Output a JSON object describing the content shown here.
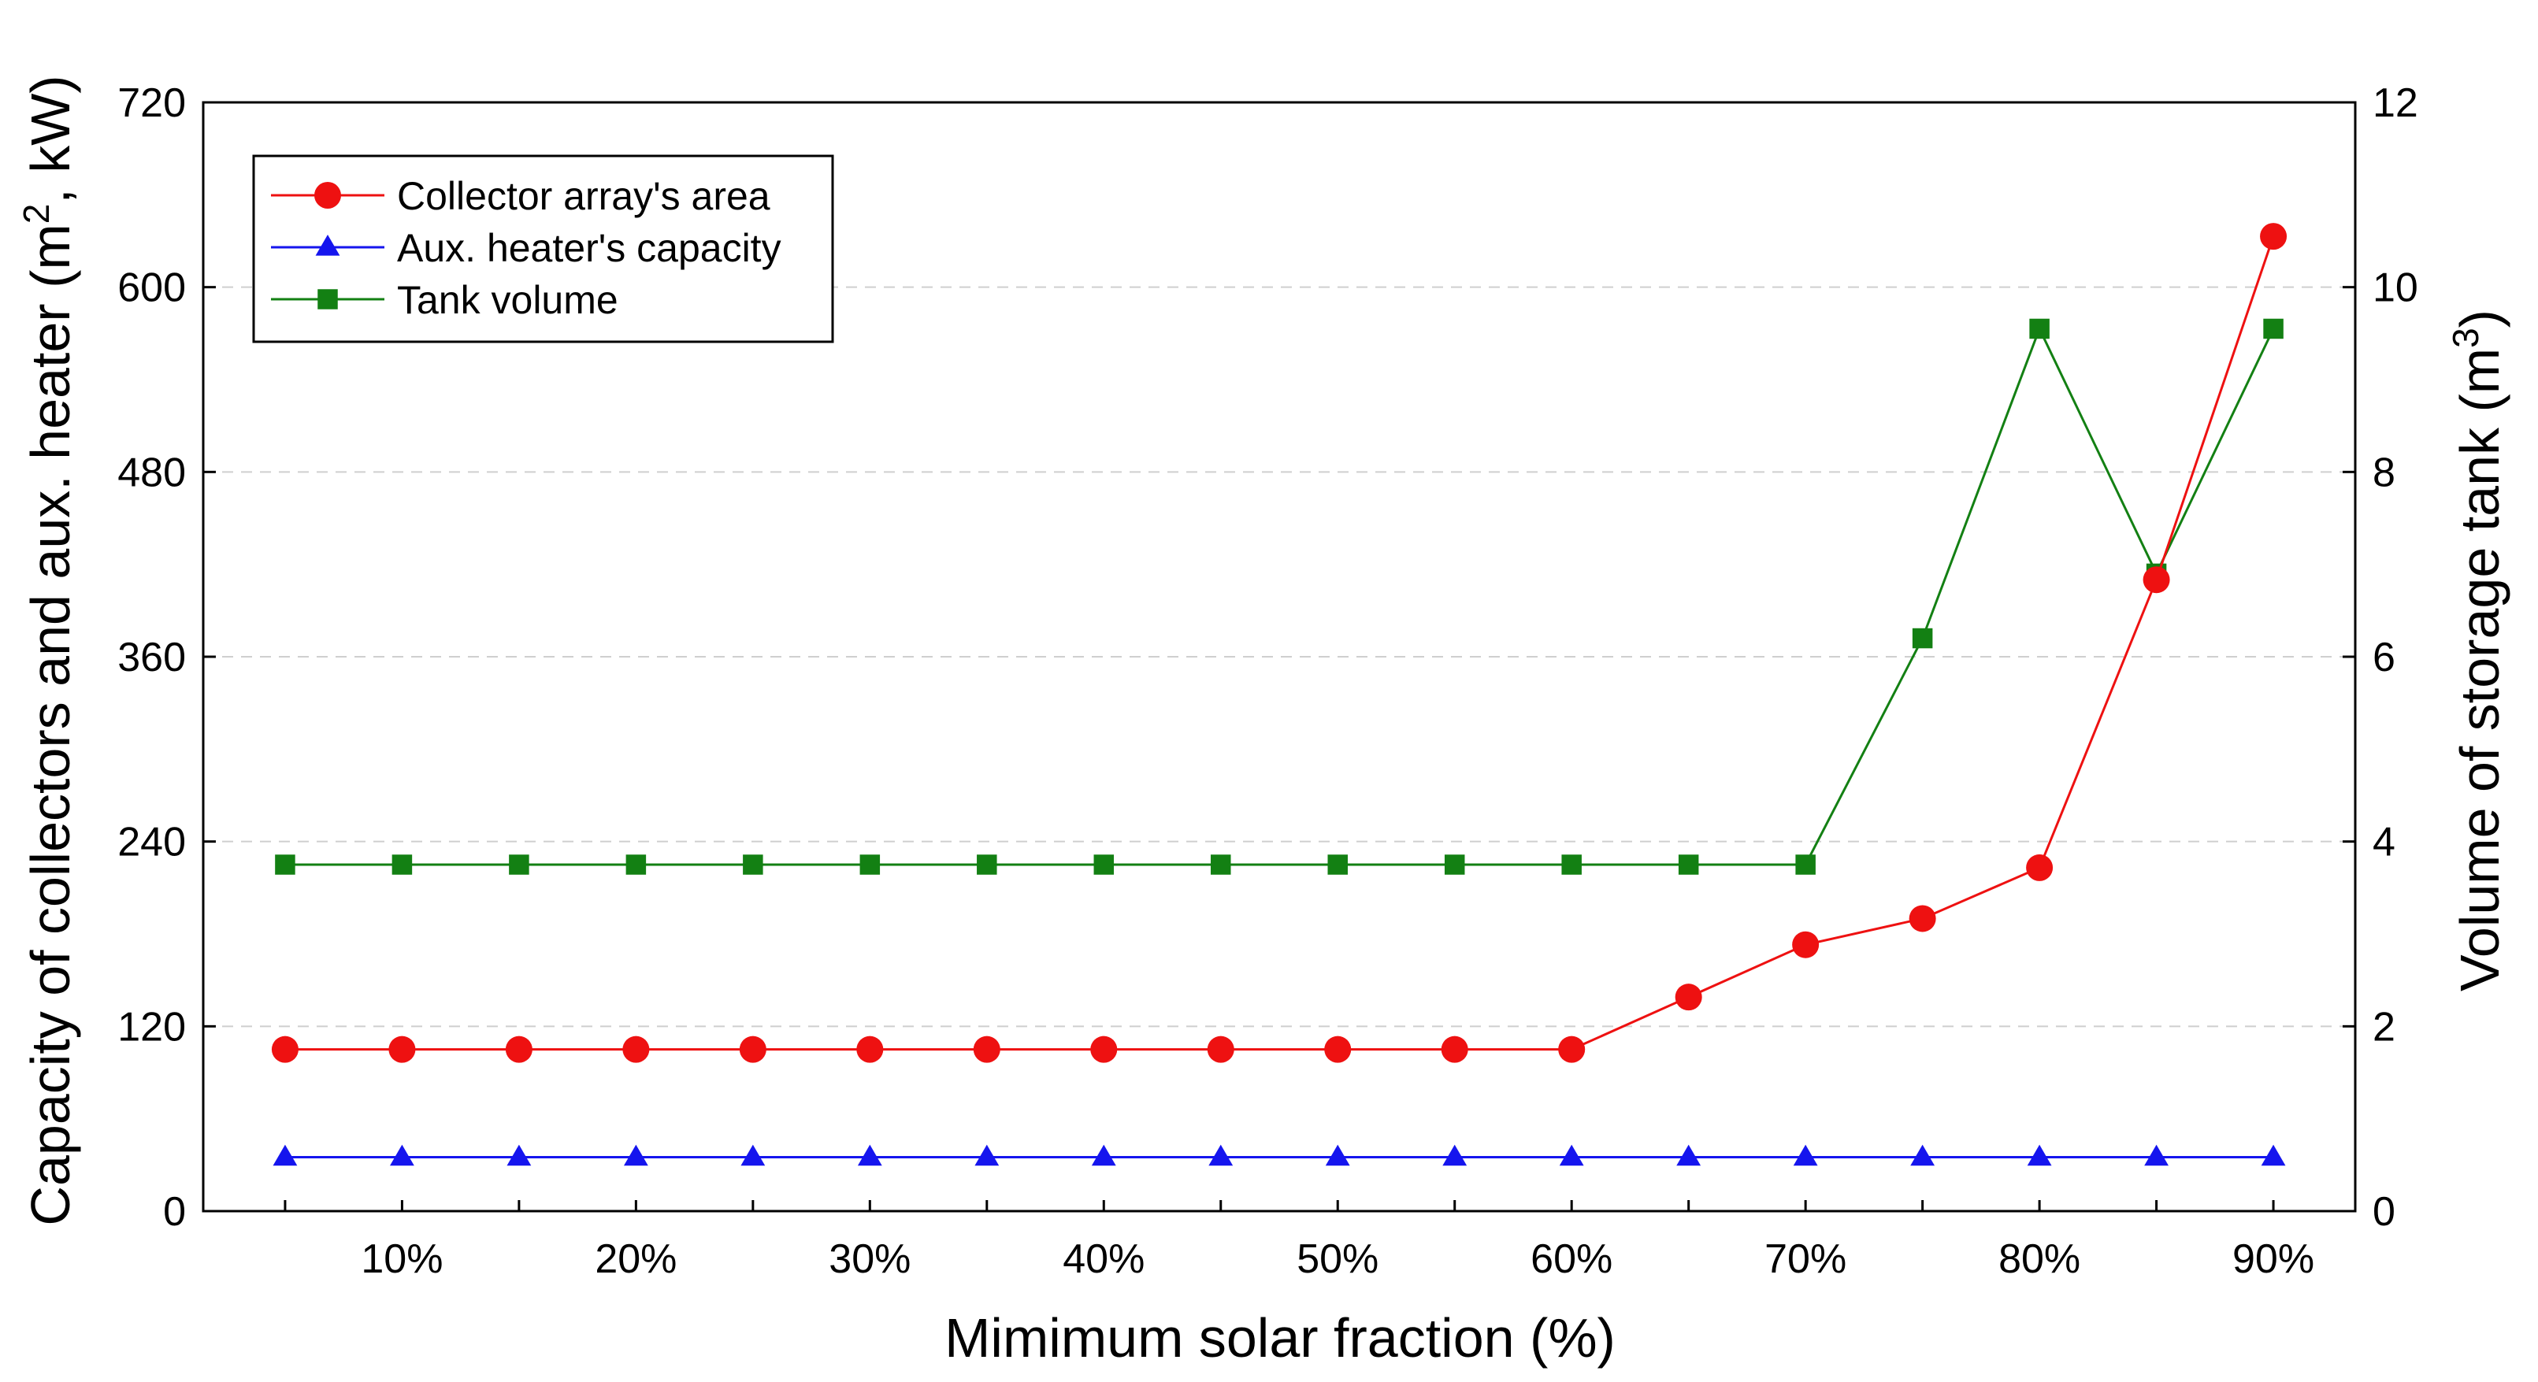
{
  "chart_data": {
    "type": "line",
    "x": [
      5,
      10,
      15,
      20,
      25,
      30,
      35,
      40,
      45,
      50,
      55,
      60,
      65,
      70,
      75,
      80,
      85,
      90
    ],
    "x_tick_values": [
      10,
      20,
      30,
      40,
      50,
      60,
      70,
      80,
      90
    ],
    "x_tick_labels": [
      "10%",
      "20%",
      "30%",
      "40%",
      "50%",
      "60%",
      "70%",
      "80%",
      "90%"
    ],
    "xlim": [
      1.5,
      93.5
    ],
    "xlabel": "Mimimum solar fraction (%)",
    "ylabel_left_prefix": "Capacity of collectors and aux. heater (m",
    "ylabel_left_sup": "2",
    "ylabel_left_suffix": ", kW)",
    "ylabel_right_prefix": "Volume of storage tank (m",
    "ylabel_right_sup": "3",
    "ylabel_right_suffix": ")",
    "ylim_left": [
      0,
      720
    ],
    "ylim_right": [
      0,
      12
    ],
    "yticks_left": [
      "0",
      "120",
      "240",
      "360",
      "480",
      "600",
      "720"
    ],
    "yticks_right": [
      "0",
      "2",
      "4",
      "6",
      "8",
      "10",
      "12"
    ],
    "grid": "horizontal dashed",
    "legend_position": "top-left",
    "series": [
      {
        "name": "Collector array's area",
        "axis": "left",
        "color": "#ee1111",
        "marker": "circle",
        "values": [
          105,
          105,
          105,
          105,
          105,
          105,
          105,
          105,
          105,
          105,
          105,
          105,
          139,
          173,
          190,
          223,
          410,
          633
        ]
      },
      {
        "name": "Aux. heater's capacity",
        "axis": "left",
        "color": "#1515ee",
        "marker": "triangle",
        "values": [
          35,
          35,
          35,
          35,
          35,
          35,
          35,
          35,
          35,
          35,
          35,
          35,
          35,
          35,
          35,
          35,
          35,
          35
        ]
      },
      {
        "name": "Tank volume",
        "axis": "right",
        "color": "#138013",
        "marker": "square",
        "values": [
          3.75,
          3.75,
          3.75,
          3.75,
          3.75,
          3.75,
          3.75,
          3.75,
          3.75,
          3.75,
          3.75,
          3.75,
          3.75,
          3.75,
          6.2,
          9.55,
          6.9,
          9.55
        ]
      }
    ]
  }
}
